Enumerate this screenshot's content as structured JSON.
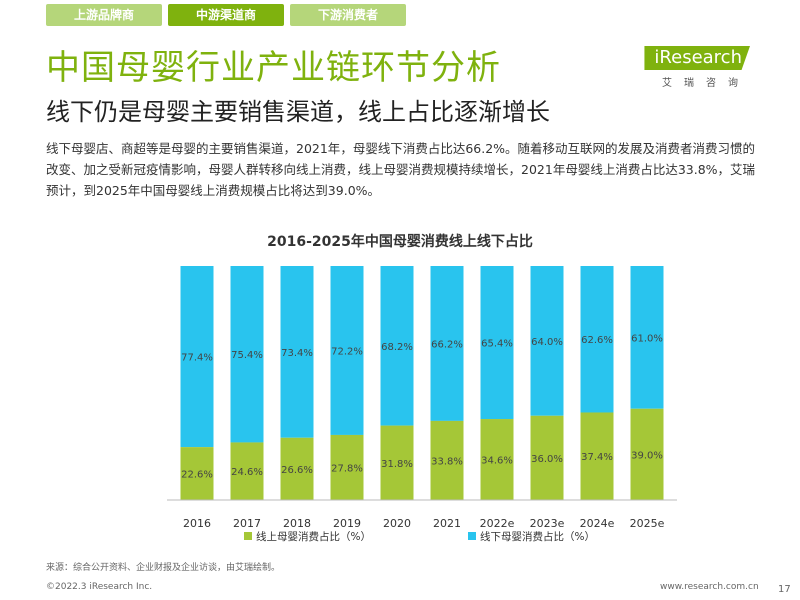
{
  "tabs": [
    {
      "label": "上游品牌商"
    },
    {
      "label": "中游渠道商"
    },
    {
      "label": "下游消费者"
    }
  ],
  "title": "中国母婴行业产业链环节分析",
  "subtitle": "线下仍是母婴主要销售渠道，线上占比逐渐增长",
  "logo": {
    "brand": "iResearch",
    "brand_cn": "艾瑞咨询"
  },
  "paragraph": "线下母婴店、商超等是母婴的主要销售渠道，2021年，母婴线下消费占比达66.2%。随着移动互联网的发展及消费者消费习惯的改变、加之受新冠疫情影响，母婴人群转移向线上消费，线上母婴消费规模持续增长，2021年母婴线上消费占比达33.8%，艾瑞预计，到2025年中国母婴线上消费规模占比将达到39.0%。",
  "colors": {
    "online": "#a5c737",
    "offline": "#29c4ee",
    "brand": "#7fb20e"
  },
  "chart_data": {
    "type": "bar",
    "stacked": true,
    "percent": true,
    "title": "2016-2025年中国母婴消费线上线下占比",
    "categories": [
      "2016",
      "2017",
      "2018",
      "2019",
      "2020",
      "2021",
      "2022e",
      "2023e",
      "2024e",
      "2025e"
    ],
    "series": [
      {
        "name": "线上母婴消费占比（%）",
        "values": [
          22.6,
          24.6,
          26.6,
          27.8,
          31.8,
          33.8,
          34.6,
          36.0,
          37.4,
          39.0
        ],
        "labels": [
          "22.6%",
          "24.6%",
          "26.6%",
          "27.8%",
          "31.8%",
          "33.8%",
          "34.6%",
          "36.0%",
          "37.4%",
          "39.0%"
        ]
      },
      {
        "name": "线下母婴消费占比（%）",
        "values": [
          77.4,
          75.4,
          73.4,
          72.2,
          68.2,
          66.2,
          65.4,
          64.0,
          62.6,
          61.0
        ],
        "labels": [
          "77.4%",
          "75.4%",
          "73.4%",
          "72.2%",
          "68.2%",
          "66.2%",
          "65.4%",
          "64.0%",
          "62.6%",
          "61.0%"
        ]
      }
    ],
    "ylim": [
      0,
      100
    ],
    "grid": false,
    "legend": "bottom"
  },
  "source": "来源：综合公开资料、企业财报及企业访谈，由艾瑞绘制。",
  "footer": {
    "copyright": "©2022.3 iResearch Inc.",
    "site": "www.research.com.cn",
    "page": "17"
  }
}
